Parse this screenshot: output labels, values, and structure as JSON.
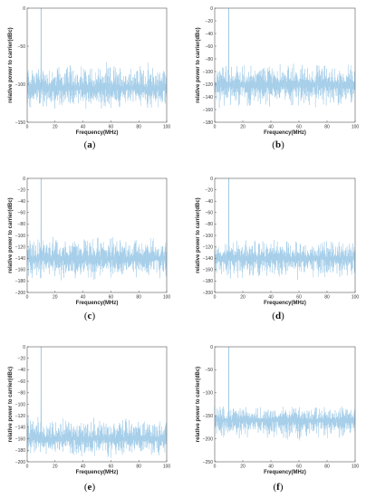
{
  "chart_data": [
    {
      "type": "line",
      "caption": "(a)",
      "xlabel": "Frequency(MHz)",
      "ylabel": "relative power to carrier(dBc)",
      "xlim": [
        0,
        100
      ],
      "ylim": [
        -150,
        0
      ],
      "xticks": [
        0,
        20,
        40,
        60,
        80,
        100
      ],
      "yticks": [
        0,
        -50,
        -100,
        -150
      ],
      "series": [
        {
          "color": "#9fcbe8",
          "carrier_mhz": 10,
          "carrier_dbc": 0,
          "floor_mean_dbc": -105,
          "floor_top_dbc": -70,
          "floor_bottom_dbc": -135
        }
      ],
      "grid": false
    },
    {
      "type": "line",
      "caption": "(b)",
      "xlabel": "Frequency(MHz)",
      "ylabel": "relative power to carrier(dBc)",
      "xlim": [
        0,
        100
      ],
      "ylim": [
        -180,
        0
      ],
      "xticks": [
        0,
        20,
        40,
        60,
        80,
        100
      ],
      "yticks": [
        0,
        -20,
        -40,
        -60,
        -80,
        -100,
        -120,
        -140,
        -160,
        -180
      ],
      "series": [
        {
          "color": "#9fcbe8",
          "carrier_mhz": 10,
          "carrier_dbc": 0,
          "floor_mean_dbc": -120,
          "floor_top_dbc": -85,
          "floor_bottom_dbc": -160
        }
      ],
      "grid": false
    },
    {
      "type": "line",
      "caption": "(c)",
      "xlabel": "Frequency(MHz)",
      "ylabel": "relative power to carrier(dBc)",
      "xlim": [
        0,
        100
      ],
      "ylim": [
        -200,
        0
      ],
      "xticks": [
        0,
        20,
        40,
        60,
        80,
        100
      ],
      "yticks": [
        0,
        -20,
        -40,
        -60,
        -80,
        -100,
        -120,
        -140,
        -160,
        -180,
        -200
      ],
      "series": [
        {
          "color": "#9fcbe8",
          "carrier_mhz": 10,
          "carrier_dbc": 0,
          "floor_mean_dbc": -140,
          "floor_top_dbc": -100,
          "floor_bottom_dbc": -180
        }
      ],
      "grid": false
    },
    {
      "type": "line",
      "caption": "(d)",
      "xlabel": "Frequency(MHz)",
      "ylabel": "relative power to carrier(dBc)",
      "xlim": [
        0,
        100
      ],
      "ylim": [
        -200,
        0
      ],
      "xticks": [
        0,
        20,
        40,
        60,
        80,
        100
      ],
      "yticks": [
        0,
        -20,
        -40,
        -60,
        -80,
        -100,
        -120,
        -140,
        -160,
        -180,
        -200
      ],
      "series": [
        {
          "color": "#9fcbe8",
          "carrier_mhz": 10,
          "carrier_dbc": 0,
          "floor_mean_dbc": -140,
          "floor_top_dbc": -105,
          "floor_bottom_dbc": -180
        }
      ],
      "grid": false
    },
    {
      "type": "line",
      "caption": "(e)",
      "xlabel": "Frequency(MHz)",
      "ylabel": "relative power to carrier(dBc)",
      "xlim": [
        0,
        100
      ],
      "ylim": [
        -200,
        0
      ],
      "xticks": [
        0,
        20,
        40,
        60,
        80,
        100
      ],
      "yticks": [
        0,
        -20,
        -40,
        -60,
        -80,
        -100,
        -120,
        -140,
        -160,
        -180,
        -200
      ],
      "series": [
        {
          "color": "#9fcbe8",
          "carrier_mhz": 10,
          "carrier_dbc": 0,
          "floor_mean_dbc": -160,
          "floor_top_dbc": -120,
          "floor_bottom_dbc": -195
        }
      ],
      "grid": false
    },
    {
      "type": "line",
      "caption": "(f)",
      "xlabel": "Frequency(MHz)",
      "ylabel": "relative power to carrier(dBc)",
      "xlim": [
        0,
        100
      ],
      "ylim": [
        -250,
        0
      ],
      "xticks": [
        0,
        20,
        40,
        60,
        80,
        100
      ],
      "yticks": [
        0,
        -50,
        -100,
        -150,
        -200,
        -250
      ],
      "series": [
        {
          "color": "#9fcbe8",
          "carrier_mhz": 10,
          "carrier_dbc": 0,
          "floor_mean_dbc": -160,
          "floor_top_dbc": -125,
          "floor_bottom_dbc": -205
        }
      ],
      "grid": false
    }
  ]
}
